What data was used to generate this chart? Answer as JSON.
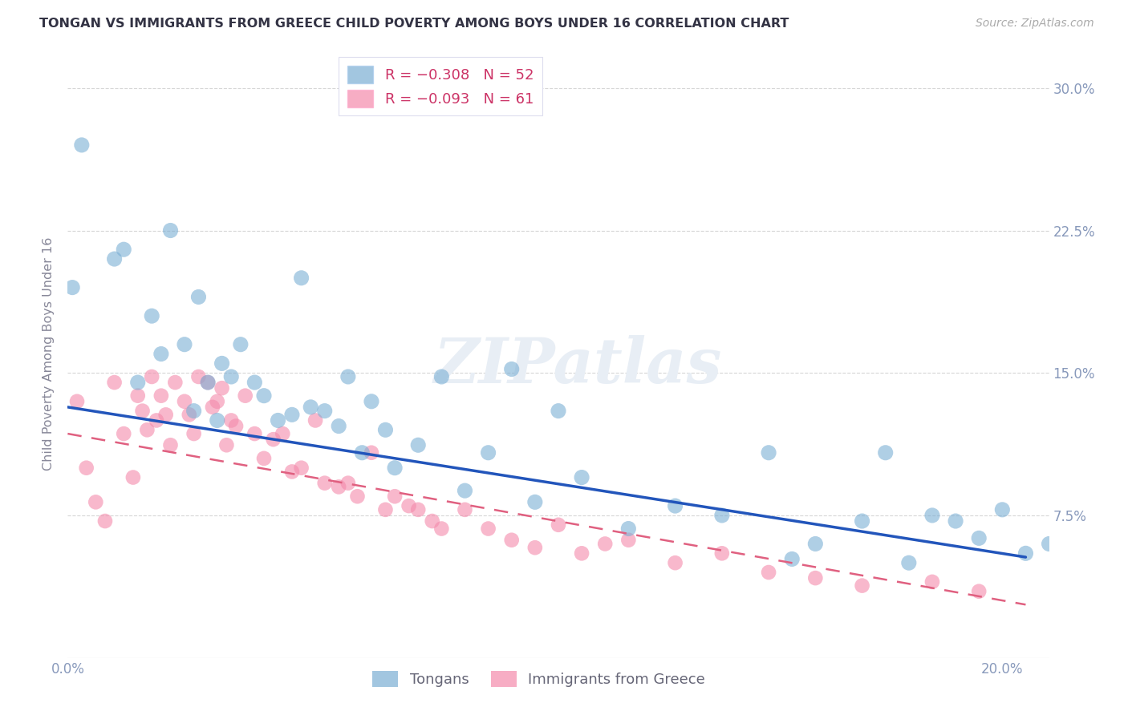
{
  "title": "TONGAN VS IMMIGRANTS FROM GREECE CHILD POVERTY AMONG BOYS UNDER 16 CORRELATION CHART",
  "source": "Source: ZipAtlas.com",
  "ylabel": "Child Poverty Among Boys Under 16",
  "xlim": [
    0.0,
    0.21
  ],
  "ylim": [
    0.0,
    0.32
  ],
  "xticks": [
    0.0,
    0.05,
    0.1,
    0.15,
    0.2
  ],
  "xticklabels": [
    "0.0%",
    "",
    "",
    "",
    "20.0%"
  ],
  "yticks": [
    0.075,
    0.15,
    0.225,
    0.3
  ],
  "yticklabels": [
    "7.5%",
    "15.0%",
    "22.5%",
    "30.0%"
  ],
  "tongan_color": "#7bafd4",
  "greece_color": "#f48aab",
  "tongan_line_color": "#2255bb",
  "greece_line_color": "#e06080",
  "watermark": "ZIPatlas",
  "background_color": "#ffffff",
  "grid_color": "#cccccc",
  "tongan_x": [
    0.001,
    0.003,
    0.01,
    0.012,
    0.015,
    0.018,
    0.02,
    0.022,
    0.025,
    0.027,
    0.028,
    0.03,
    0.032,
    0.033,
    0.035,
    0.037,
    0.04,
    0.042,
    0.045,
    0.048,
    0.05,
    0.052,
    0.055,
    0.058,
    0.06,
    0.063,
    0.065,
    0.068,
    0.07,
    0.075,
    0.08,
    0.085,
    0.09,
    0.095,
    0.1,
    0.105,
    0.11,
    0.12,
    0.13,
    0.14,
    0.15,
    0.155,
    0.16,
    0.17,
    0.175,
    0.18,
    0.185,
    0.19,
    0.195,
    0.2,
    0.205,
    0.21
  ],
  "tongan_y": [
    0.195,
    0.27,
    0.21,
    0.215,
    0.145,
    0.18,
    0.16,
    0.225,
    0.165,
    0.13,
    0.19,
    0.145,
    0.125,
    0.155,
    0.148,
    0.165,
    0.145,
    0.138,
    0.125,
    0.128,
    0.2,
    0.132,
    0.13,
    0.122,
    0.148,
    0.108,
    0.135,
    0.12,
    0.1,
    0.112,
    0.148,
    0.088,
    0.108,
    0.152,
    0.082,
    0.13,
    0.095,
    0.068,
    0.08,
    0.075,
    0.108,
    0.052,
    0.06,
    0.072,
    0.108,
    0.05,
    0.075,
    0.072,
    0.063,
    0.078,
    0.055,
    0.06
  ],
  "greece_x": [
    0.002,
    0.004,
    0.006,
    0.008,
    0.01,
    0.012,
    0.014,
    0.015,
    0.016,
    0.017,
    0.018,
    0.019,
    0.02,
    0.021,
    0.022,
    0.023,
    0.025,
    0.026,
    0.027,
    0.028,
    0.03,
    0.031,
    0.032,
    0.033,
    0.034,
    0.035,
    0.036,
    0.038,
    0.04,
    0.042,
    0.044,
    0.046,
    0.048,
    0.05,
    0.053,
    0.055,
    0.058,
    0.06,
    0.062,
    0.065,
    0.068,
    0.07,
    0.073,
    0.075,
    0.078,
    0.08,
    0.085,
    0.09,
    0.095,
    0.1,
    0.105,
    0.11,
    0.115,
    0.12,
    0.13,
    0.14,
    0.15,
    0.16,
    0.17,
    0.185,
    0.195
  ],
  "greece_y": [
    0.135,
    0.1,
    0.082,
    0.072,
    0.145,
    0.118,
    0.095,
    0.138,
    0.13,
    0.12,
    0.148,
    0.125,
    0.138,
    0.128,
    0.112,
    0.145,
    0.135,
    0.128,
    0.118,
    0.148,
    0.145,
    0.132,
    0.135,
    0.142,
    0.112,
    0.125,
    0.122,
    0.138,
    0.118,
    0.105,
    0.115,
    0.118,
    0.098,
    0.1,
    0.125,
    0.092,
    0.09,
    0.092,
    0.085,
    0.108,
    0.078,
    0.085,
    0.08,
    0.078,
    0.072,
    0.068,
    0.078,
    0.068,
    0.062,
    0.058,
    0.07,
    0.055,
    0.06,
    0.062,
    0.05,
    0.055,
    0.045,
    0.042,
    0.038,
    0.04,
    0.035
  ],
  "tongan_line_x0": 0.0,
  "tongan_line_y0": 0.132,
  "tongan_line_x1": 0.205,
  "tongan_line_y1": 0.053,
  "greece_line_x0": 0.0,
  "greece_line_y0": 0.118,
  "greece_line_x1": 0.205,
  "greece_line_y1": 0.028
}
